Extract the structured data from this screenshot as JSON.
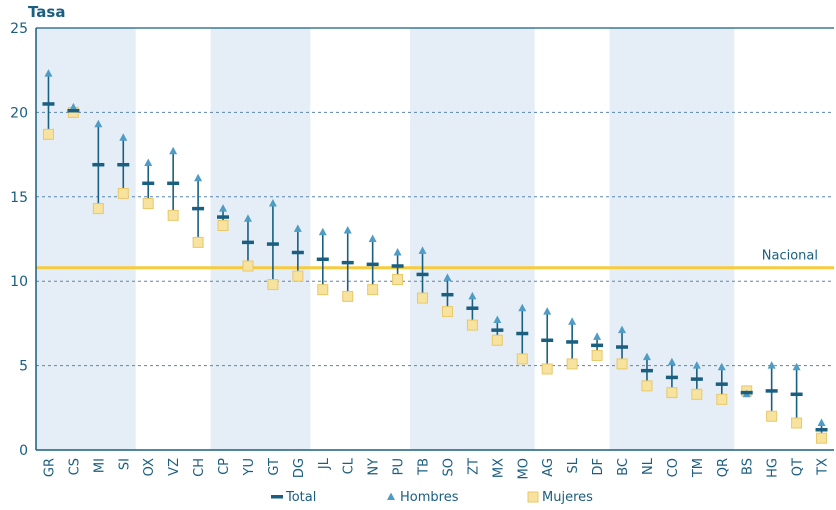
{
  "chart_data": {
    "type": "scatter",
    "ylabel": "Tasa",
    "ylim": [
      0,
      25
    ],
    "yticks": [
      "0",
      "5",
      "10",
      "15",
      "20",
      "25"
    ],
    "categories": [
      "GR",
      "CS",
      "MI",
      "SI",
      "OX",
      "VZ",
      "CH",
      "CP",
      "YU",
      "GT",
      "DG",
      "JL",
      "CL",
      "NY",
      "PU",
      "TB",
      "SO",
      "ZT",
      "MX",
      "MO",
      "AG",
      "SL",
      "DF",
      "BC",
      "NL",
      "CO",
      "TM",
      "QR",
      "BS",
      "HG",
      "QT",
      "TX"
    ],
    "series": [
      {
        "name": "Total",
        "values": [
          20.5,
          20.1,
          16.9,
          16.9,
          15.8,
          15.8,
          14.3,
          13.8,
          12.3,
          12.2,
          11.7,
          11.3,
          11.1,
          11.0,
          10.9,
          10.4,
          9.2,
          8.4,
          7.1,
          6.9,
          6.5,
          6.4,
          6.2,
          6.1,
          4.7,
          4.3,
          4.2,
          3.9,
          3.4,
          3.5,
          3.3,
          1.2
        ]
      },
      {
        "name": "Hombres",
        "values": [
          22.3,
          20.3,
          19.3,
          18.5,
          17.0,
          17.7,
          16.1,
          14.3,
          13.7,
          14.6,
          13.1,
          12.9,
          13.0,
          12.5,
          11.7,
          11.8,
          10.2,
          9.1,
          7.7,
          8.4,
          8.2,
          7.6,
          6.7,
          7.1,
          5.5,
          5.2,
          5.0,
          4.9,
          3.3,
          5.0,
          4.9,
          1.6
        ]
      },
      {
        "name": "Mujeres",
        "values": [
          18.7,
          20.0,
          14.3,
          15.2,
          14.6,
          13.9,
          12.3,
          13.3,
          10.9,
          9.8,
          10.3,
          9.5,
          9.1,
          9.5,
          10.1,
          9.0,
          8.2,
          7.4,
          6.5,
          5.4,
          4.8,
          5.1,
          5.6,
          5.1,
          3.8,
          3.4,
          3.3,
          3.0,
          3.5,
          2.0,
          1.6,
          0.7
        ]
      }
    ],
    "reference_line": {
      "label": "Nacional",
      "value": 10.8
    },
    "shaded_category_bands": [
      [
        "GR",
        "SI"
      ],
      [
        "CP",
        "DG"
      ],
      [
        "TB",
        "MO"
      ],
      [
        "BC",
        "QR"
      ]
    ],
    "grid": true,
    "legend_position": "bottom-center",
    "colors": {
      "total": "#1a5e80",
      "hombres": "#4f9cc4",
      "mujeres": "#f7e39d",
      "mujeres_border": "#e8c86a",
      "nacional": "#f7cb3d",
      "band": "#e5eef6",
      "grid": "#5a86ad",
      "axis": "#1a5e80",
      "text": "#1a5e80"
    }
  }
}
